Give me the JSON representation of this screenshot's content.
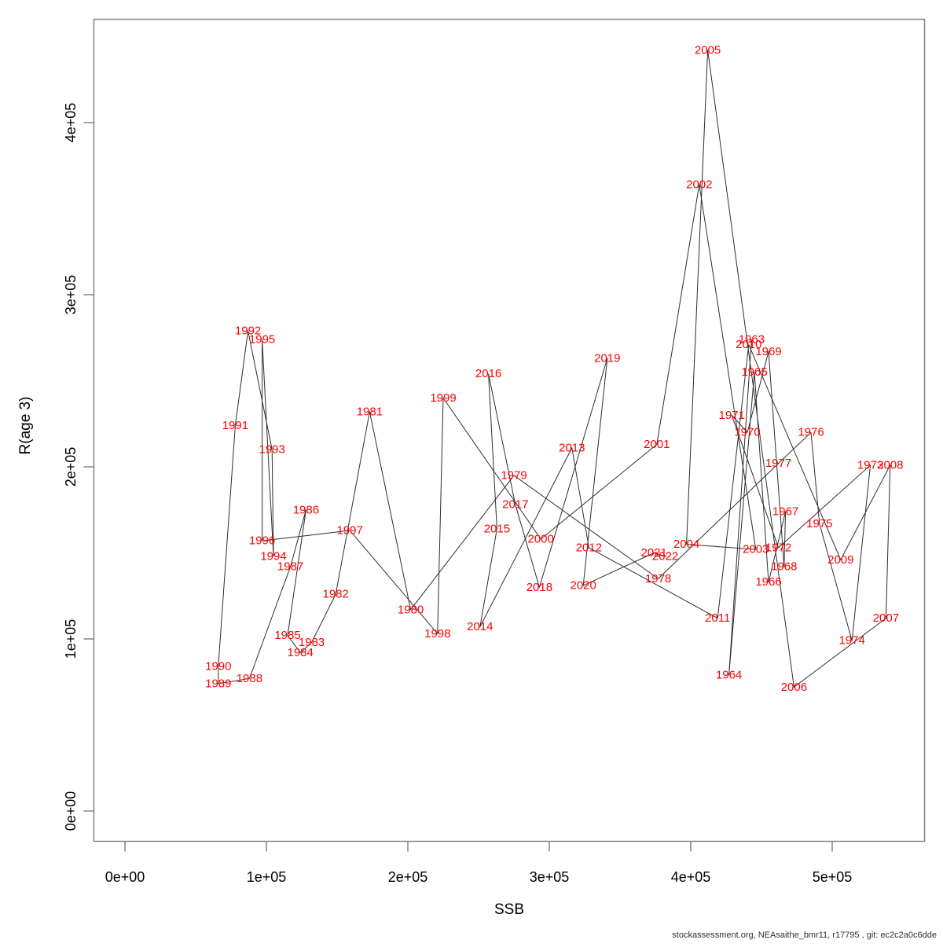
{
  "chart_data": {
    "type": "scatter",
    "title": "",
    "xlabel": "SSB",
    "ylabel": "R(age 3)",
    "xlim": [
      -22000,
      565000
    ],
    "ylim": [
      -17000,
      460000
    ],
    "grid": false,
    "legend": "none",
    "point_label_color": "#FF0000",
    "line_color": "#2e2e2e",
    "frame_color": "#7d7d7d",
    "text_color": "#000000",
    "x_ticks": [
      {
        "value": 0,
        "label": "0e+00"
      },
      {
        "value": 100000,
        "label": "1e+05"
      },
      {
        "value": 200000,
        "label": "2e+05"
      },
      {
        "value": 300000,
        "label": "3e+05"
      },
      {
        "value": 400000,
        "label": "4e+05"
      },
      {
        "value": 500000,
        "label": "5e+05"
      }
    ],
    "y_ticks": [
      {
        "value": 0,
        "label": "0e+00"
      },
      {
        "value": 100000,
        "label": "1e+05"
      },
      {
        "value": 200000,
        "label": "2e+05"
      },
      {
        "value": 300000,
        "label": "3e+05"
      },
      {
        "value": 400000,
        "label": "4e+05"
      }
    ],
    "series": [
      {
        "name": "SSB vs R(age 3), points labelled by year, consecutive years connected",
        "points": [
          {
            "year": 1963,
            "ssb": 443000,
            "r": 274000
          },
          {
            "year": 1964,
            "ssb": 427000,
            "r": 79000
          },
          {
            "year": 1965,
            "ssb": 445000,
            "r": 255000
          },
          {
            "year": 1966,
            "ssb": 455000,
            "r": 133000
          },
          {
            "year": 1967,
            "ssb": 467000,
            "r": 174000
          },
          {
            "year": 1968,
            "ssb": 466000,
            "r": 142000
          },
          {
            "year": 1969,
            "ssb": 455000,
            "r": 267000
          },
          {
            "year": 1970,
            "ssb": 440000,
            "r": 220000
          },
          {
            "year": 1971,
            "ssb": 429000,
            "r": 230000
          },
          {
            "year": 1972,
            "ssb": 462000,
            "r": 153000
          },
          {
            "year": 1973,
            "ssb": 527000,
            "r": 201000
          },
          {
            "year": 1974,
            "ssb": 514000,
            "r": 99000
          },
          {
            "year": 1975,
            "ssb": 491000,
            "r": 167000
          },
          {
            "year": 1976,
            "ssb": 485000,
            "r": 220000
          },
          {
            "year": 1977,
            "ssb": 462000,
            "r": 202000
          },
          {
            "year": 1978,
            "ssb": 377000,
            "r": 135000
          },
          {
            "year": 1979,
            "ssb": 275000,
            "r": 195000
          },
          {
            "year": 1980,
            "ssb": 202000,
            "r": 117000
          },
          {
            "year": 1981,
            "ssb": 173000,
            "r": 232000
          },
          {
            "year": 1982,
            "ssb": 149000,
            "r": 126000
          },
          {
            "year": 1983,
            "ssb": 132000,
            "r": 98000
          },
          {
            "year": 1984,
            "ssb": 124000,
            "r": 92000
          },
          {
            "year": 1985,
            "ssb": 115000,
            "r": 102000
          },
          {
            "year": 1986,
            "ssb": 128000,
            "r": 175000
          },
          {
            "year": 1987,
            "ssb": 117000,
            "r": 142000
          },
          {
            "year": 1988,
            "ssb": 88000,
            "r": 77000
          },
          {
            "year": 1989,
            "ssb": 66000,
            "r": 74000
          },
          {
            "year": 1990,
            "ssb": 66000,
            "r": 84000
          },
          {
            "year": 1991,
            "ssb": 78000,
            "r": 224000
          },
          {
            "year": 1992,
            "ssb": 87000,
            "r": 279000
          },
          {
            "year": 1993,
            "ssb": 104000,
            "r": 210000
          },
          {
            "year": 1994,
            "ssb": 105000,
            "r": 148000
          },
          {
            "year": 1995,
            "ssb": 97000,
            "r": 274000
          },
          {
            "year": 1996,
            "ssb": 97000,
            "r": 157000
          },
          {
            "year": 1997,
            "ssb": 159000,
            "r": 163000
          },
          {
            "year": 1998,
            "ssb": 221000,
            "r": 103000
          },
          {
            "year": 1999,
            "ssb": 225000,
            "r": 240000
          },
          {
            "year": 2000,
            "ssb": 294000,
            "r": 158000
          },
          {
            "year": 2001,
            "ssb": 376000,
            "r": 213000
          },
          {
            "year": 2002,
            "ssb": 406000,
            "r": 364000
          },
          {
            "year": 2003,
            "ssb": 446000,
            "r": 152000
          },
          {
            "year": 2004,
            "ssb": 397000,
            "r": 155000
          },
          {
            "year": 2005,
            "ssb": 412000,
            "r": 442000
          },
          {
            "year": 2006,
            "ssb": 473000,
            "r": 72000
          },
          {
            "year": 2007,
            "ssb": 538000,
            "r": 112000
          },
          {
            "year": 2008,
            "ssb": 541000,
            "r": 201000
          },
          {
            "year": 2009,
            "ssb": 506000,
            "r": 146000
          },
          {
            "year": 2010,
            "ssb": 441000,
            "r": 271000
          },
          {
            "year": 2011,
            "ssb": 419000,
            "r": 112000
          },
          {
            "year": 2012,
            "ssb": 328000,
            "r": 153000
          },
          {
            "year": 2013,
            "ssb": 316000,
            "r": 211000
          },
          {
            "year": 2014,
            "ssb": 251000,
            "r": 107000
          },
          {
            "year": 2015,
            "ssb": 263000,
            "r": 164000
          },
          {
            "year": 2016,
            "ssb": 257000,
            "r": 254000
          },
          {
            "year": 2017,
            "ssb": 276000,
            "r": 178000
          },
          {
            "year": 2018,
            "ssb": 293000,
            "r": 130000
          },
          {
            "year": 2019,
            "ssb": 341000,
            "r": 263000
          },
          {
            "year": 2020,
            "ssb": 324000,
            "r": 131000
          },
          {
            "year": 2021,
            "ssb": 374000,
            "r": 150000
          },
          {
            "year": 2022,
            "ssb": 382000,
            "r": 148000
          }
        ]
      }
    ]
  },
  "footer": {
    "text": "stockassessment.org, NEAsaithe_bmr11, r17795 , git: ec2c2a0c6dde"
  }
}
